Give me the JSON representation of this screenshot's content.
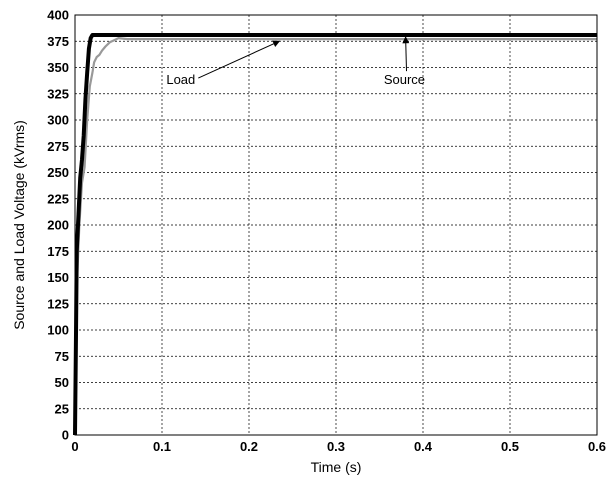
{
  "chart_data": {
    "type": "line",
    "title": "",
    "xlabel": "Time (s)",
    "ylabel": "Source and Load Voltage (kVrms)",
    "xlim": [
      0,
      0.6
    ],
    "ylim": [
      0,
      400
    ],
    "xticks": [
      0,
      0.1,
      0.2,
      0.3,
      0.4,
      0.5,
      0.6
    ],
    "xtick_labels": [
      "0",
      "0.1",
      "0.2",
      "0.3",
      "0.4",
      "0.5",
      "0.6"
    ],
    "yticks": [
      0,
      25,
      50,
      75,
      100,
      125,
      150,
      175,
      200,
      225,
      250,
      275,
      300,
      325,
      350,
      375,
      400
    ],
    "ytick_labels": [
      "0",
      "25",
      "50",
      "75",
      "100",
      "125",
      "150",
      "175",
      "200",
      "225",
      "250",
      "275",
      "300",
      "325",
      "350",
      "375",
      "400"
    ],
    "grid": true,
    "series": [
      {
        "name": "Source",
        "color": "#000000",
        "x": [
          0,
          0.0012,
          0.002,
          0.004,
          0.006,
          0.008,
          0.01,
          0.012,
          0.014,
          0.016,
          0.018,
          0.02,
          0.025,
          0.03,
          0.05,
          0.1,
          0.2,
          0.3,
          0.4,
          0.5,
          0.6
        ],
        "y": [
          0,
          100,
          175,
          210,
          245,
          262,
          285,
          320,
          345,
          368,
          378,
          381,
          381,
          381,
          381,
          381,
          381,
          381,
          381,
          381,
          381
        ]
      },
      {
        "name": "Load",
        "color": "#999999",
        "x": [
          0,
          0.002,
          0.005,
          0.008,
          0.011,
          0.014,
          0.017,
          0.02,
          0.022,
          0.025,
          0.028,
          0.031,
          0.035,
          0.04,
          0.045,
          0.05,
          0.06,
          0.08,
          0.1,
          0.2,
          0.3,
          0.4,
          0.5,
          0.6
        ],
        "y": [
          0,
          140,
          200,
          240,
          255,
          300,
          332,
          345,
          355,
          360,
          362,
          366,
          370,
          374,
          376,
          378,
          377,
          377,
          377,
          377,
          377,
          377,
          377,
          377
        ]
      }
    ],
    "annotations": [
      {
        "text": "Load",
        "text_x": 0.105,
        "text_y": 338,
        "arrow_x": 0.235,
        "arrow_y": 377
      },
      {
        "text": "Source",
        "text_x": 0.355,
        "text_y": 338,
        "arrow_x": 0.38,
        "arrow_y": 381
      }
    ]
  }
}
